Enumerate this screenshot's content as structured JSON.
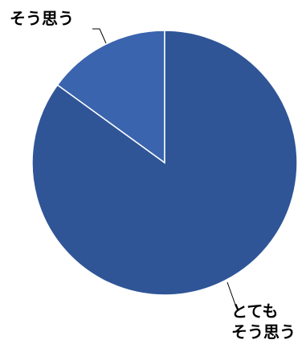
{
  "chart_data": {
    "type": "pie",
    "categories": [
      "とても\nそう思う",
      "そう思う"
    ],
    "values": [
      85,
      15
    ],
    "colors": [
      "#2f5597",
      "#3a64ae"
    ],
    "start_angle": 0,
    "direction": "clockwise"
  }
}
